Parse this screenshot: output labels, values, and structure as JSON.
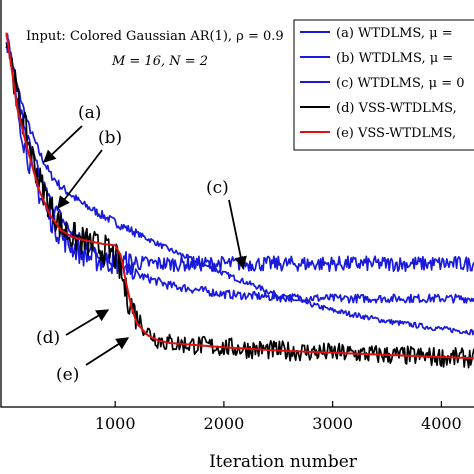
{
  "chart_data": {
    "type": "line",
    "title": "",
    "xlabel": "Iteration number",
    "ylabel": "",
    "xlim": [
      -50,
      4300
    ],
    "ylim": [
      -34.5,
      3
    ],
    "grid": false,
    "x_ticks": [
      1000,
      2000,
      3000,
      4000
    ],
    "x_tick_labels": [
      "1000",
      "2000",
      "3000",
      "4000"
    ],
    "annotation_text": [
      "Input: Colored Gaussian AR(1), ρ = 0.9",
      "M = 16, N = 2"
    ],
    "legend": {
      "placement": "top-right",
      "entries": [
        "(a) WTDLMS, μ =",
        "(b) WTDLMS, μ =",
        "(c) WTDLMS, μ = 0",
        "(d) VSS-WTDLMS,",
        "(e) VSS-WTDLMS,"
      ]
    },
    "curve_labels": [
      "(a)",
      "(b)",
      "(c)",
      "(d)",
      "(e)"
    ],
    "series": [
      {
        "key": "a",
        "color": "#1a1adb",
        "x": [
          0,
          100,
          200,
          300,
          400,
          500,
          700,
          1000,
          1500,
          2000,
          2500,
          3000,
          3500,
          4000,
          4300
        ],
        "y": [
          0,
          -5,
          -8.5,
          -11,
          -13,
          -14.2,
          -15.8,
          -17.5,
          -20,
          -22.2,
          -24.2,
          -25.6,
          -26.6,
          -27.3,
          -27.6
        ],
        "noise": 0.25
      },
      {
        "key": "b",
        "color": "#1a1adb",
        "x": [
          0,
          100,
          200,
          300,
          400,
          500,
          600,
          800,
          1000,
          1200,
          1500,
          2000,
          2500,
          3000,
          3500,
          4000,
          4300
        ],
        "y": [
          0,
          -6,
          -10,
          -13,
          -15.5,
          -17,
          -18.5,
          -20,
          -21.3,
          -22.3,
          -23.3,
          -24.1,
          -24.4,
          -24.5,
          -24.5,
          -24.5,
          -24.5
        ],
        "noise": 0.4
      },
      {
        "key": "c",
        "color": "#1a1adb",
        "x": [
          0,
          80,
          160,
          250,
          350,
          450,
          550,
          700,
          850,
          1000,
          1500,
          2000,
          3000,
          4000,
          4300
        ],
        "y": [
          0,
          -6,
          -10,
          -13.5,
          -16,
          -18,
          -19.3,
          -20.4,
          -21,
          -21.2,
          -21.3,
          -21.3,
          -21.3,
          -21.3,
          -21.3
        ],
        "noise": 0.7
      },
      {
        "key": "d",
        "color": "#000000",
        "x": [
          0,
          100,
          200,
          300,
          400,
          500,
          600,
          700,
          800,
          900,
          1000,
          1050,
          1100,
          1200,
          1300,
          1400,
          1500,
          2000,
          2500,
          3000,
          3500,
          4000,
          4300
        ],
        "y": [
          0,
          -6,
          -10,
          -13.5,
          -16,
          -17.8,
          -18.8,
          -19.2,
          -19.6,
          -20,
          -20.6,
          -22,
          -24,
          -26.2,
          -27.6,
          -28.3,
          -28.6,
          -29,
          -29.3,
          -29.5,
          -29.7,
          -29.9,
          -30
        ],
        "noise": 0.9
      },
      {
        "key": "e",
        "color": "#e01010",
        "x": [
          0,
          100,
          200,
          300,
          400,
          500,
          600,
          700,
          800,
          900,
          1000,
          1050,
          1100,
          1150,
          1200,
          1300,
          1400,
          1500,
          2000,
          2500,
          3000,
          3500,
          4000,
          4300
        ],
        "y": [
          0,
          -7,
          -11,
          -14.5,
          -16.8,
          -18.2,
          -18.8,
          -19.1,
          -19.3,
          -19.5,
          -19.6,
          -20.5,
          -23,
          -25.3,
          -26.8,
          -27.9,
          -28.4,
          -28.6,
          -29,
          -29.3,
          -29.5,
          -29.7,
          -29.9,
          -30
        ],
        "noise": 0
      }
    ]
  }
}
